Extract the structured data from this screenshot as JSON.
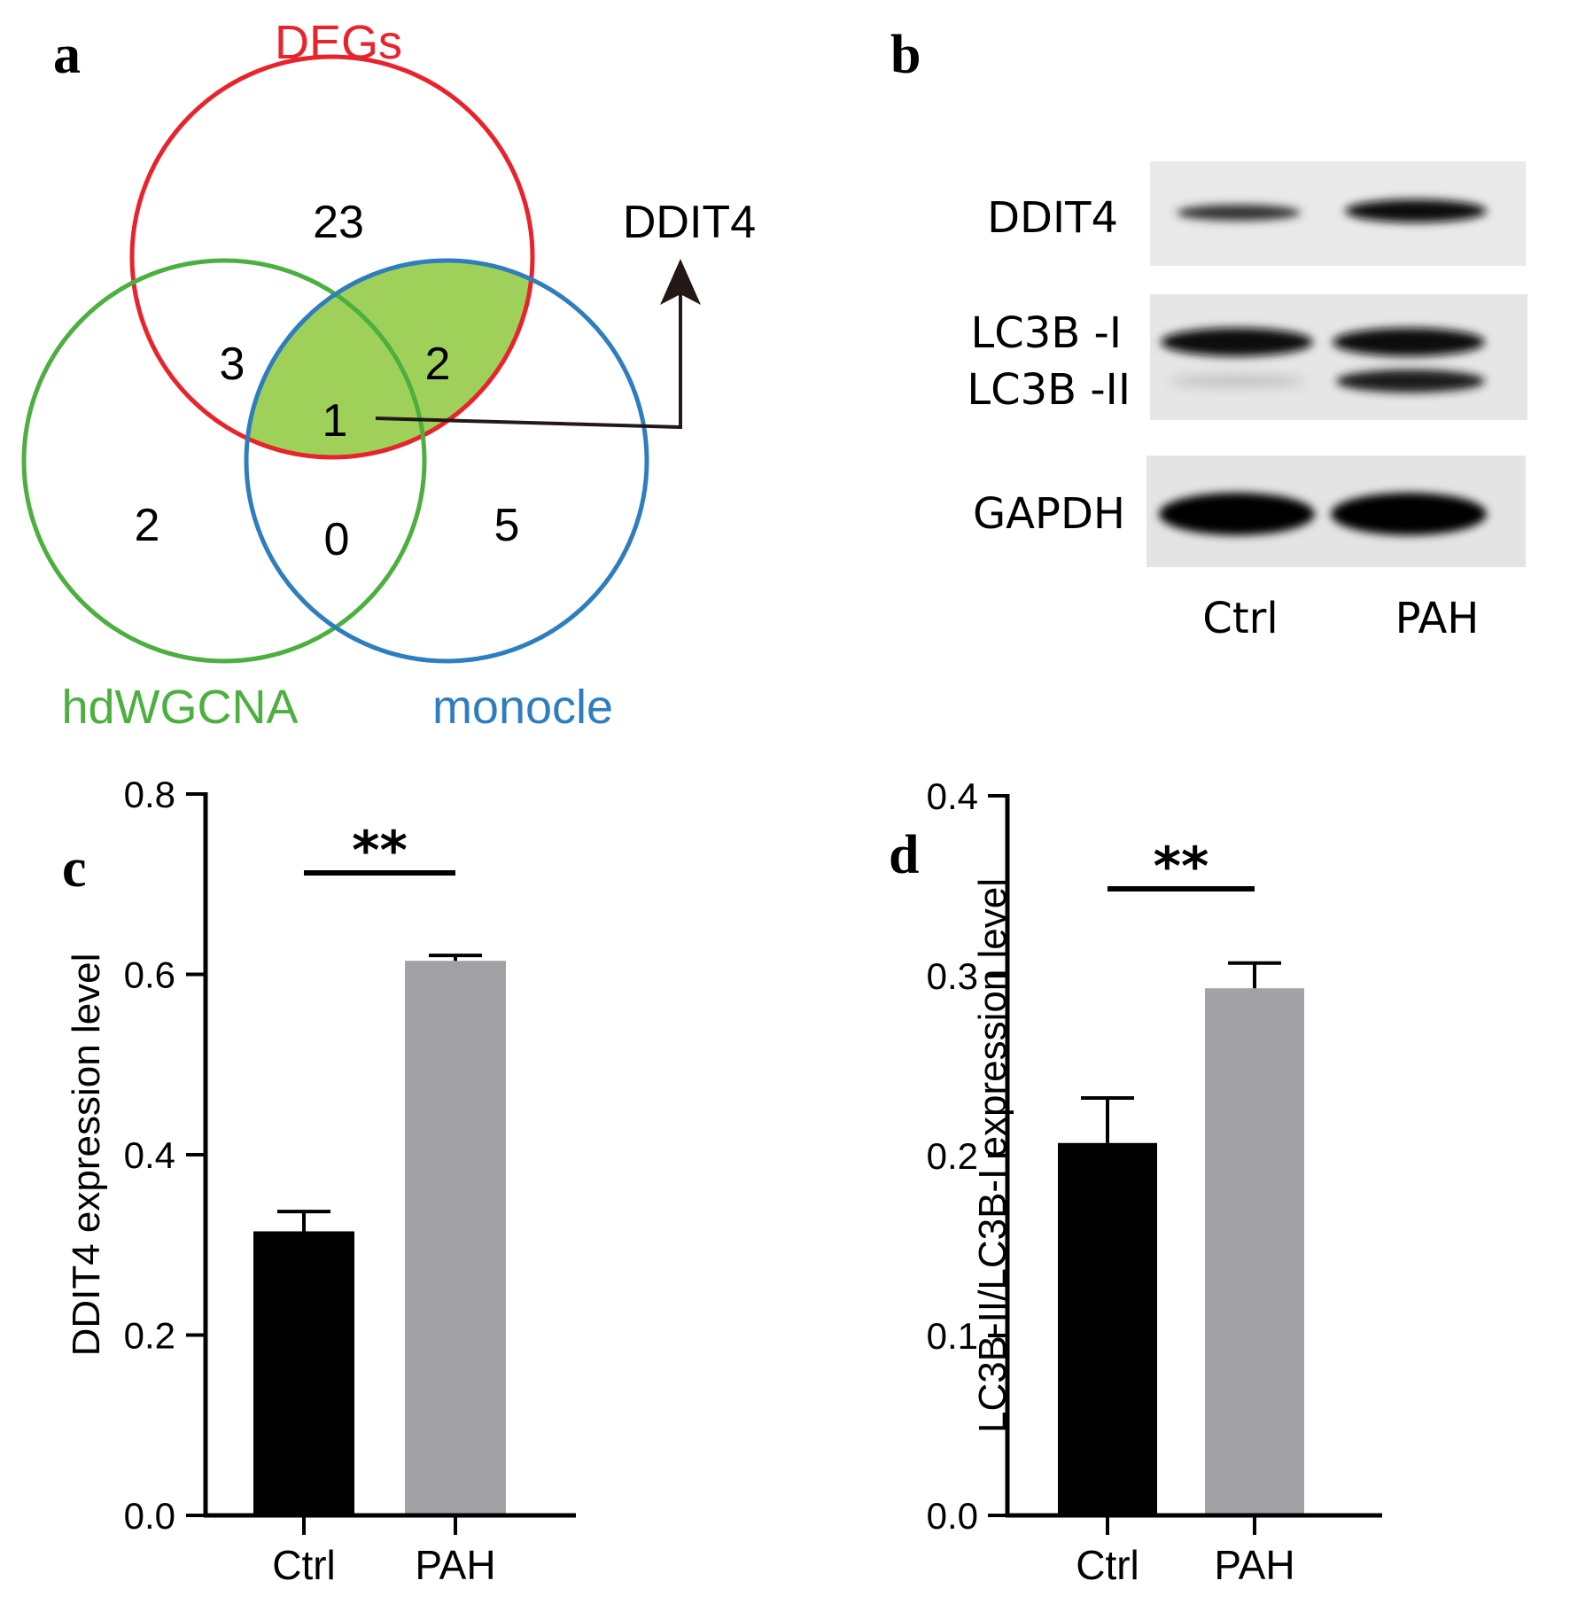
{
  "panels": {
    "a": "a",
    "b": "b",
    "c": "c",
    "d": "d"
  },
  "venn": {
    "sets": [
      {
        "name": "DEGs",
        "color": "#e8232b"
      },
      {
        "name": "hdWGCNA",
        "color": "#4caf3f"
      },
      {
        "name": "monocle",
        "color": "#2e7ebe"
      }
    ],
    "regions": {
      "degs_only": "23",
      "degs_hdwgcna": "3",
      "degs_monocle": "2",
      "all_three": "1",
      "hdwgcna_only": "2",
      "hdwgcna_monocle": "0",
      "monocle_only": "5"
    },
    "highlight_color": "#9fd15a",
    "callout_gene": "DDIT4"
  },
  "blot": {
    "bands": [
      "DDIT4",
      "LC3B -I",
      "LC3B -II",
      "GAPDH"
    ],
    "lanes": [
      "Ctrl",
      "PAH"
    ]
  },
  "chart_data": [
    {
      "type": "bar",
      "panel": "c",
      "categories": [
        "Ctrl",
        "PAH"
      ],
      "values": [
        0.315,
        0.615
      ],
      "errors": [
        0.022,
        0.006
      ],
      "colors": [
        "#000000",
        "#a2a2a6"
      ],
      "ylabel": "DDIT4 expression level",
      "xlabel": "",
      "ylim": [
        0,
        0.8
      ],
      "yticks": [
        "0.0",
        "0.2",
        "0.4",
        "0.6",
        "0.8"
      ],
      "significance": "**"
    },
    {
      "type": "bar",
      "panel": "d",
      "categories": [
        "Ctrl",
        "PAH"
      ],
      "values": [
        0.207,
        0.293
      ],
      "errors": [
        0.025,
        0.014
      ],
      "colors": [
        "#000000",
        "#a2a2a6"
      ],
      "ylabel": "LC3B-II/LC3B-I expression level",
      "xlabel": "",
      "ylim": [
        0,
        0.4
      ],
      "yticks": [
        "0.0",
        "0.1",
        "0.2",
        "0.3",
        "0.4"
      ],
      "significance": "**"
    }
  ]
}
